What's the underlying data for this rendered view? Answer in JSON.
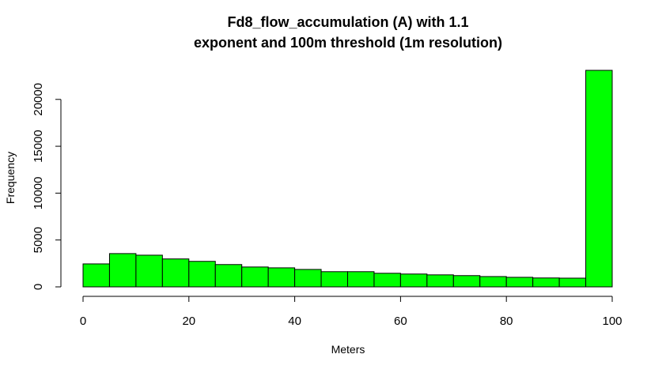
{
  "chart_data": {
    "type": "bar",
    "title_lines": [
      "Fd8_flow_accumulation (A) with 1.1",
      "exponent and 100m threshold (1m resolution)"
    ],
    "xlabel": "Meters",
    "ylabel": "Frequency",
    "xlim": [
      0,
      100
    ],
    "ylim": [
      0,
      23100
    ],
    "x_ticks": [
      0,
      20,
      40,
      60,
      80,
      100
    ],
    "y_ticks": [
      0,
      5000,
      10000,
      15000,
      20000
    ],
    "bin_width": 5,
    "bins": [
      {
        "start": 0,
        "end": 5,
        "value": 2450
      },
      {
        "start": 5,
        "end": 10,
        "value": 3550
      },
      {
        "start": 10,
        "end": 15,
        "value": 3380
      },
      {
        "start": 15,
        "end": 20,
        "value": 2980
      },
      {
        "start": 20,
        "end": 25,
        "value": 2720
      },
      {
        "start": 25,
        "end": 30,
        "value": 2380
      },
      {
        "start": 30,
        "end": 35,
        "value": 2120
      },
      {
        "start": 35,
        "end": 40,
        "value": 2030
      },
      {
        "start": 40,
        "end": 45,
        "value": 1860
      },
      {
        "start": 45,
        "end": 50,
        "value": 1620
      },
      {
        "start": 50,
        "end": 55,
        "value": 1620
      },
      {
        "start": 55,
        "end": 60,
        "value": 1450
      },
      {
        "start": 60,
        "end": 65,
        "value": 1370
      },
      {
        "start": 65,
        "end": 70,
        "value": 1280
      },
      {
        "start": 70,
        "end": 75,
        "value": 1200
      },
      {
        "start": 75,
        "end": 80,
        "value": 1100
      },
      {
        "start": 80,
        "end": 85,
        "value": 1020
      },
      {
        "start": 85,
        "end": 90,
        "value": 950
      },
      {
        "start": 90,
        "end": 95,
        "value": 930
      },
      {
        "start": 95,
        "end": 100,
        "value": 23100
      }
    ],
    "bar_color": "#00ff00",
    "bar_stroke": "#000000",
    "grid": false,
    "legend": "none"
  }
}
